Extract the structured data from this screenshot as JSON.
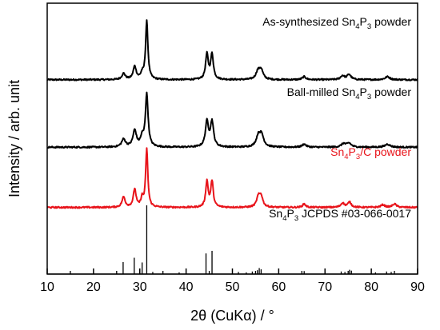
{
  "chart_data": {
    "type": "line",
    "xlabel": "2θ (CuKα) / °",
    "ylabel": "Intensity / arb. unit",
    "xlim": [
      10,
      90
    ],
    "xticks": [
      10,
      20,
      30,
      40,
      50,
      60,
      70,
      80,
      90
    ],
    "ylim": [
      0,
      6.3
    ],
    "yticks": [],
    "series": [
      {
        "name": "As-synthesized Sn4P3 powder",
        "label_parts": [
          "As-synthesized Sn",
          "4",
          "P",
          "3",
          " powder"
        ],
        "color": "#000000",
        "baseline": 4.52,
        "peaks": [
          [
            26.5,
            0.14,
            0.45
          ],
          [
            28.9,
            0.3,
            0.4
          ],
          [
            30.5,
            0.12,
            0.35
          ],
          [
            31.5,
            1.35,
            0.3
          ],
          [
            44.5,
            0.58,
            0.35
          ],
          [
            45.6,
            0.58,
            0.35
          ],
          [
            55.5,
            0.18,
            0.5
          ],
          [
            56.2,
            0.22,
            0.5
          ],
          [
            65.5,
            0.07,
            0.45
          ],
          [
            73.8,
            0.09,
            0.5
          ],
          [
            75.2,
            0.12,
            0.5
          ],
          [
            83.5,
            0.07,
            0.6
          ]
        ]
      },
      {
        "name": "Ball-milled Sn4P3 powder",
        "label_parts": [
          "Ball-milled Sn",
          "4",
          "P",
          "3",
          " powder"
        ],
        "color": "#000000",
        "baseline": 2.95,
        "peaks": [
          [
            26.5,
            0.18,
            0.5
          ],
          [
            28.9,
            0.38,
            0.45
          ],
          [
            30.5,
            0.2,
            0.4
          ],
          [
            31.5,
            1.22,
            0.35
          ],
          [
            44.5,
            0.58,
            0.4
          ],
          [
            45.6,
            0.58,
            0.4
          ],
          [
            55.6,
            0.24,
            0.55
          ],
          [
            56.3,
            0.26,
            0.55
          ],
          [
            65.5,
            0.07,
            0.5
          ],
          [
            74.0,
            0.08,
            0.55
          ],
          [
            75.2,
            0.09,
            0.55
          ],
          [
            83.5,
            0.07,
            0.65
          ]
        ]
      },
      {
        "name": "Sn4P3/C powder",
        "label_parts": [
          "Sn",
          "4",
          "P",
          "3",
          "/C powder"
        ],
        "color": "#e8141b",
        "baseline": 1.55,
        "peaks": [
          [
            26.5,
            0.24,
            0.4
          ],
          [
            28.9,
            0.42,
            0.35
          ],
          [
            30.5,
            0.2,
            0.3
          ],
          [
            31.5,
            1.35,
            0.28
          ],
          [
            44.5,
            0.6,
            0.32
          ],
          [
            45.6,
            0.6,
            0.32
          ],
          [
            55.6,
            0.22,
            0.45
          ],
          [
            56.2,
            0.24,
            0.45
          ],
          [
            65.5,
            0.08,
            0.4
          ],
          [
            73.8,
            0.1,
            0.45
          ],
          [
            75.3,
            0.12,
            0.45
          ],
          [
            82.5,
            0.06,
            0.5
          ],
          [
            85.0,
            0.08,
            0.5
          ]
        ]
      }
    ],
    "reference": {
      "name": "Sn4P3 JCPDS #03-066-0017",
      "label_parts": [
        "Sn",
        "4",
        "P",
        "3",
        " JCPDS #03-066-0017"
      ],
      "color": "#000000",
      "baseline": 0.0,
      "lines": [
        [
          26.4,
          0.28
        ],
        [
          28.8,
          0.38
        ],
        [
          30.5,
          0.27
        ],
        [
          31.5,
          1.6
        ],
        [
          32.8,
          0.05
        ],
        [
          38.5,
          0.04
        ],
        [
          44.3,
          0.48
        ],
        [
          45.6,
          0.54
        ],
        [
          51.3,
          0.05
        ],
        [
          53.0,
          0.04
        ],
        [
          54.3,
          0.06
        ],
        [
          55.4,
          0.09
        ],
        [
          55.8,
          0.14
        ],
        [
          56.2,
          0.11
        ],
        [
          65.5,
          0.07
        ],
        [
          73.5,
          0.06
        ],
        [
          74.3,
          0.05
        ],
        [
          75.3,
          0.1
        ],
        [
          75.7,
          0.08
        ],
        [
          80.9,
          0.04
        ],
        [
          83.3,
          0.06
        ],
        [
          84.3,
          0.05
        ]
      ]
    }
  }
}
